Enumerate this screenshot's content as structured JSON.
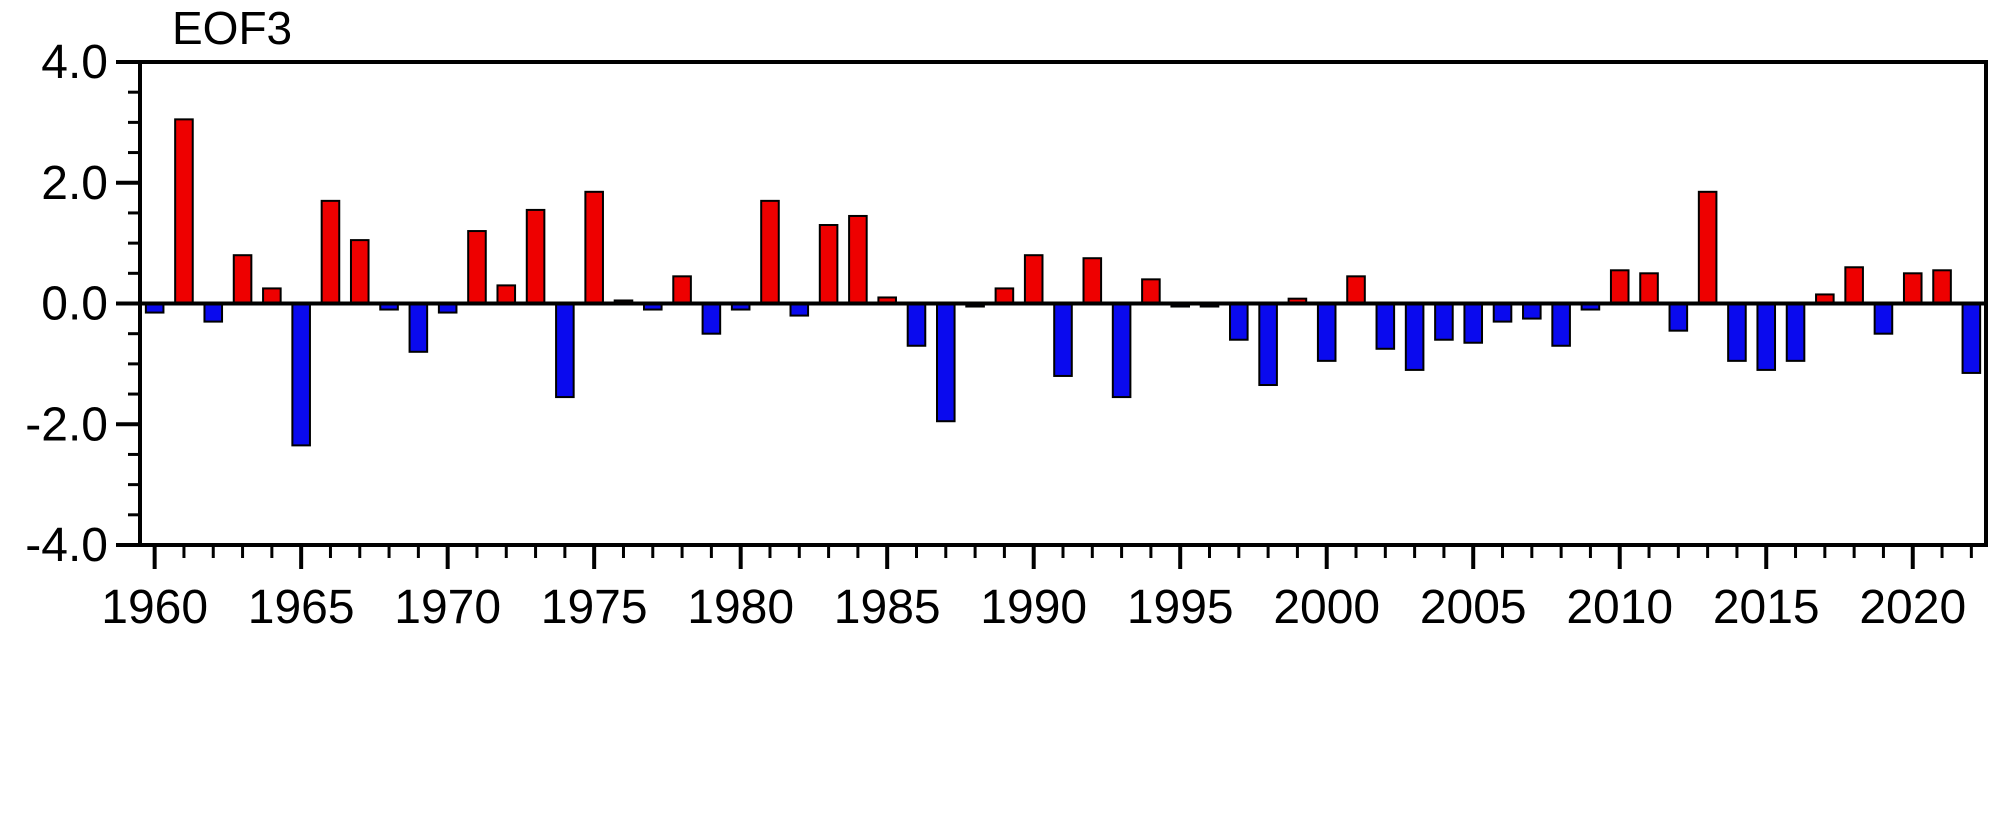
{
  "chart_data": {
    "type": "bar",
    "title": "EOF3",
    "xlabel": "",
    "ylabel": "",
    "ylim": [
      -4.0,
      4.0
    ],
    "grid": false,
    "legend": "none",
    "positive_color": "#ee0000",
    "negative_color": "#0a0aee",
    "bar_outline_color": "#000000",
    "axis_color": "#000000",
    "yticks": [
      -4.0,
      -2.0,
      0.0,
      2.0,
      4.0
    ],
    "ytick_labels": [
      "-4.0",
      "-2.0",
      "0.0",
      "2.0",
      "4.0"
    ],
    "xtick_labels": [
      "1960",
      "1965",
      "1970",
      "1975",
      "1980",
      "1985",
      "1990",
      "1995",
      "2000",
      "2005",
      "2010",
      "2015",
      "2020"
    ],
    "years": [
      1960,
      1961,
      1962,
      1963,
      1964,
      1965,
      1966,
      1967,
      1968,
      1969,
      1970,
      1971,
      1972,
      1973,
      1974,
      1975,
      1976,
      1977,
      1978,
      1979,
      1980,
      1981,
      1982,
      1983,
      1984,
      1985,
      1986,
      1987,
      1988,
      1989,
      1990,
      1991,
      1992,
      1993,
      1994,
      1995,
      1996,
      1997,
      1998,
      1999,
      2000,
      2001,
      2002,
      2003,
      2004,
      2005,
      2006,
      2007,
      2008,
      2009,
      2010,
      2011,
      2012,
      2013,
      2014,
      2015,
      2016,
      2017,
      2018,
      2019,
      2020,
      2021,
      2022
    ],
    "values": [
      -0.15,
      3.05,
      -0.3,
      0.8,
      0.25,
      -2.35,
      1.7,
      1.05,
      -0.1,
      -0.8,
      -0.15,
      1.2,
      0.3,
      1.55,
      -1.55,
      1.85,
      0.05,
      -0.1,
      0.45,
      -0.5,
      -0.1,
      1.7,
      -0.2,
      1.3,
      1.45,
      0.1,
      -0.7,
      -1.95,
      -0.05,
      0.25,
      0.8,
      -1.2,
      0.75,
      -1.55,
      0.4,
      -0.05,
      -0.05,
      -0.6,
      -1.35,
      0.08,
      -0.95,
      0.45,
      -0.75,
      -1.1,
      -0.6,
      -0.65,
      -0.3,
      -0.25,
      -0.7,
      -0.1,
      0.55,
      0.5,
      -0.45,
      1.85,
      -0.95,
      -1.1,
      -0.95,
      0.15,
      0.6,
      -0.5,
      0.5,
      0.55,
      -1.15
    ]
  }
}
